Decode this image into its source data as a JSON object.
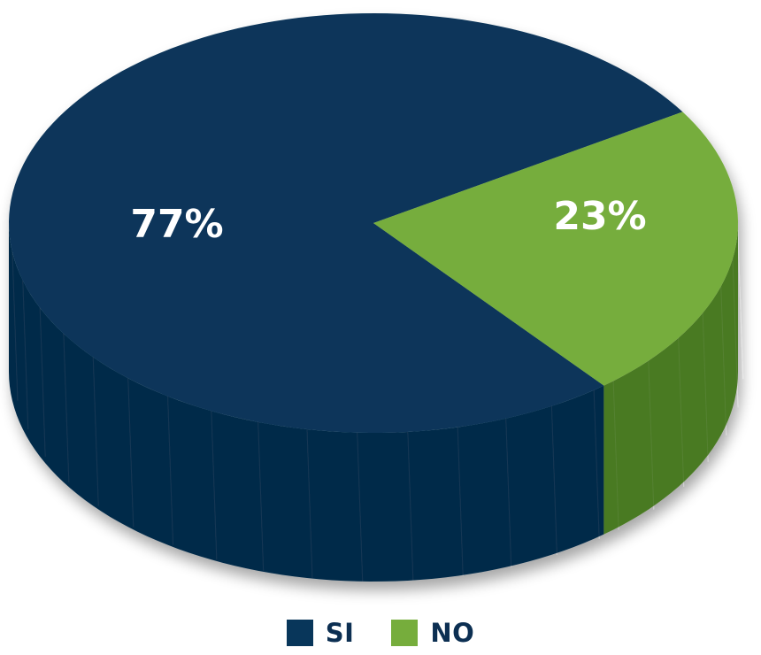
{
  "chart_data": {
    "type": "pie",
    "categories": [
      "SI",
      "NO"
    ],
    "values": [
      77,
      23
    ],
    "data_labels": [
      "77%",
      "23%"
    ],
    "legend": {
      "position": "bottom",
      "entries": [
        "SI",
        "NO"
      ]
    },
    "style": "3d",
    "colors": {
      "SI": {
        "top": "#08365a",
        "side": "#062b4a"
      },
      "NO": {
        "top": "#76ad3c",
        "side": "#4a7a24"
      }
    }
  },
  "legend": {
    "items": [
      {
        "label": "SI",
        "color": "#08365a"
      },
      {
        "label": "NO",
        "color": "#76ad3c"
      }
    ]
  }
}
